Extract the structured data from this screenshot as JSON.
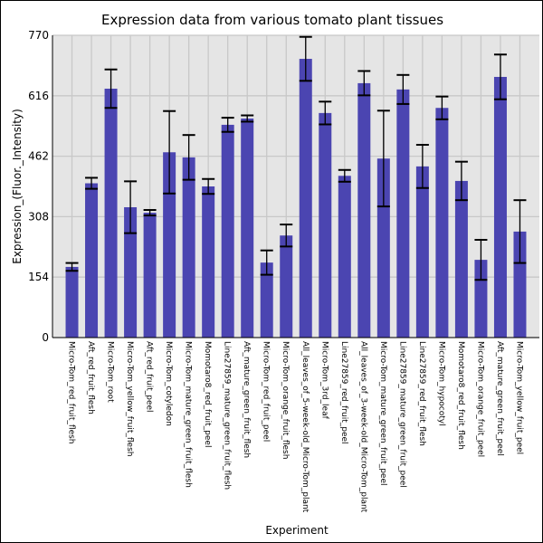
{
  "chart_data": {
    "type": "bar",
    "title": "Expression data from various tomato plant tissues",
    "xlabel": "Experiment",
    "ylabel": "Expression_(Fluor._Intensity)",
    "ylim": [
      0,
      770
    ],
    "yticks": [
      0,
      154,
      308,
      462,
      616,
      770
    ],
    "grid": true,
    "bar_color": "#4b45b1",
    "plot_bg": "#e5e5e5",
    "grid_color": "#c8c8c8",
    "categories": [
      "Micro-Tom_red_fruit_flesh",
      "Aft_red_fruit_flesh",
      "Micro-Tom_root",
      "Micro-Tom_yellow_fruit_flesh",
      "Aft_red_fruit_peel",
      "Micro-Tom_cotyledon",
      "Micro-Tom_mature_green_fruit_flesh",
      "Momotaro8_red_fruit_peel",
      "Line27859_mature_green_fruit_flesh",
      "Aft_mature_green_fruit_flesh",
      "Micro-Tom_red_fruit_peel",
      "Micro-Tom_orange_fruit_flesh",
      "All_leaves_of_5-week-old_Micro-Tom_plant",
      "Micro-Tom_3rd_leaf",
      "Line27859_red_fruit_peel",
      "All_leaves_of_3-week-old_Micro-Tom_plant",
      "Micro-Tom_mature_green_fruit_peel",
      "Line27859_mature_green_fruit_peel",
      "Line27859_red_fruit_flesh",
      "Micro-Tom_hypocotyl",
      "Momotaro8_red_fruit_flesh",
      "Micro-Tom_orange_fruit_peel",
      "Aft_mature_green_fruit_peel",
      "Micro-Tom_yellow_fruit_peel"
    ],
    "values": [
      180,
      393,
      634,
      332,
      318,
      472,
      459,
      385,
      542,
      558,
      191,
      260,
      710,
      572,
      412,
      648,
      456,
      632,
      436,
      585,
      399,
      198,
      664,
      270
    ],
    "errors": [
      10,
      14,
      49,
      66,
      7,
      105,
      57,
      19,
      18,
      8,
      31,
      28,
      56,
      29,
      15,
      31,
      122,
      37,
      55,
      29,
      49,
      51,
      57,
      80
    ]
  }
}
